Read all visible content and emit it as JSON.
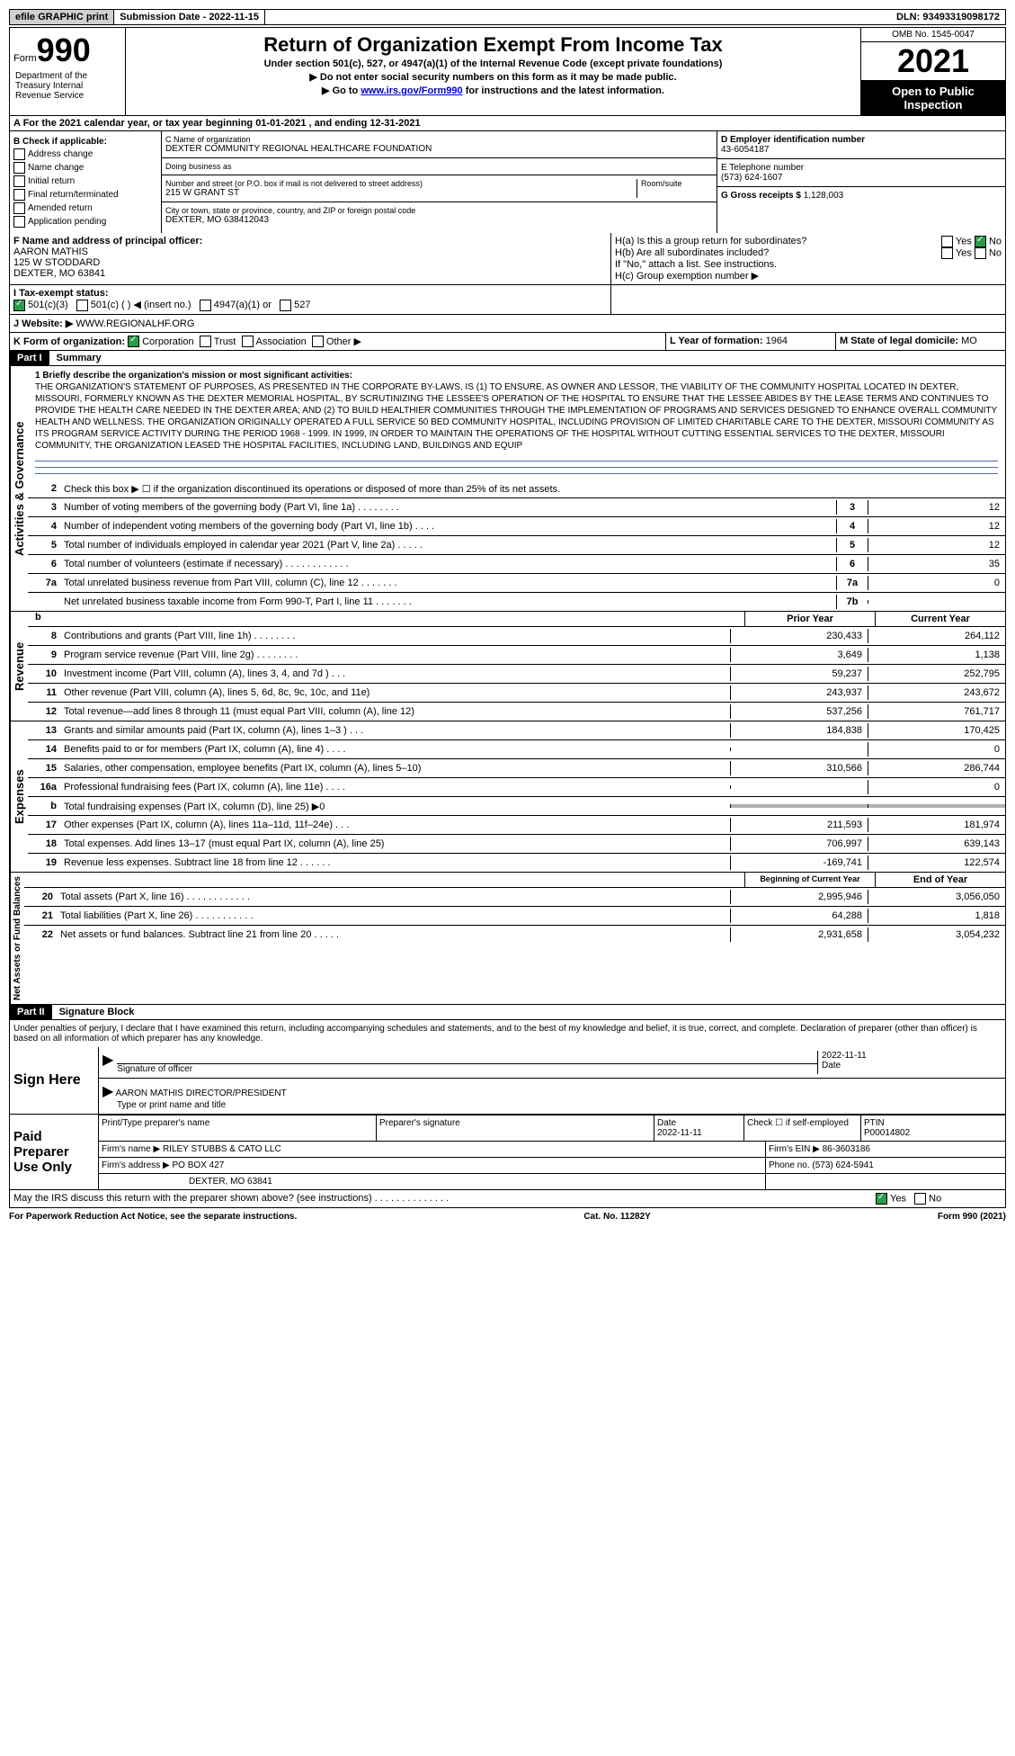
{
  "top_bar": {
    "efile": "efile GRAPHIC print",
    "submission": "Submission Date - 2022-11-15",
    "dln": "DLN: 93493319098172"
  },
  "header": {
    "form_label": "Form",
    "form_number": "990",
    "title": "Return of Organization Exempt From Income Tax",
    "subtitle1": "Under section 501(c), 527, or 4947(a)(1) of the Internal Revenue Code (except private foundations)",
    "subtitle2": "▶ Do not enter social security numbers on this form as it may be made public.",
    "subtitle3_pre": "▶ Go to ",
    "subtitle3_link": "www.irs.gov/Form990",
    "subtitle3_post": " for instructions and the latest information.",
    "omb": "OMB No. 1545-0047",
    "year": "2021",
    "open_public": "Open to Public Inspection",
    "dept": "Department of the Treasury Internal Revenue Service"
  },
  "row_a": "A For the 2021 calendar year, or tax year beginning 01-01-2021   , and ending 12-31-2021",
  "box_b": {
    "title": "B Check if applicable:",
    "items": [
      "Address change",
      "Name change",
      "Initial return",
      "Final return/terminated",
      "Amended return",
      "Application pending"
    ]
  },
  "box_c": {
    "label_name": "C Name of organization",
    "name": "DEXTER COMMUNITY REGIONAL HEALTHCARE FOUNDATION",
    "dba_label": "Doing business as",
    "dba": "",
    "addr_label": "Number and street (or P.O. box if mail is not delivered to street address)",
    "addr": "215 W GRANT ST",
    "room_label": "Room/suite",
    "city_label": "City or town, state or province, country, and ZIP or foreign postal code",
    "city": "DEXTER, MO  638412043"
  },
  "box_d": {
    "label": "D Employer identification number",
    "value": "43-6054187"
  },
  "box_e": {
    "label": "E Telephone number",
    "value": "(573) 624-1607"
  },
  "box_g": {
    "label": "G Gross receipts $",
    "value": "1,128,003"
  },
  "box_f": {
    "label": "F  Name and address of principal officer:",
    "name": "AARON MATHIS",
    "addr1": "125 W STODDARD",
    "addr2": "DEXTER, MO  63841"
  },
  "box_h": {
    "ha_label": "H(a)  Is this a group return for subordinates?",
    "hb_label": "H(b)  Are all subordinates included?",
    "hb_note": "If \"No,\" attach a list. See instructions.",
    "hc_label": "H(c)  Group exemption number ▶",
    "yes": "Yes",
    "no": "No"
  },
  "box_i": {
    "label": "I  Tax-exempt status:",
    "opts": [
      "501(c)(3)",
      "501(c) (  ) ◀ (insert no.)",
      "4947(a)(1) or",
      "527"
    ]
  },
  "box_j": {
    "label": "J Website: ▶",
    "value": "WWW.REGIONALHF.ORG"
  },
  "box_k": {
    "label": "K Form of organization:",
    "opts": [
      "Corporation",
      "Trust",
      "Association",
      "Other ▶"
    ]
  },
  "box_l": {
    "label": "L Year of formation:",
    "value": "1964"
  },
  "box_m": {
    "label": "M State of legal domicile:",
    "value": "MO"
  },
  "part1": {
    "header": "Part I",
    "title": "Summary",
    "sec_ag": "Activities & Governance",
    "sec_rev": "Revenue",
    "sec_exp": "Expenses",
    "sec_na": "Net Assets or Fund Balances",
    "l1_label": "1  Briefly describe the organization's mission or most significant activities:",
    "l1_text": "THE ORGANIZATION'S STATEMENT OF PURPOSES, AS PRESENTED IN THE CORPORATE BY-LAWS, IS (1) TO ENSURE, AS OWNER AND LESSOR, THE VIABILITY OF THE COMMUNITY HOSPITAL LOCATED IN DEXTER, MISSOURI, FORMERLY KNOWN AS THE DEXTER MEMORIAL HOSPITAL, BY SCRUTINIZING THE LESSEE'S OPERATION OF THE HOSPITAL TO ENSURE THAT THE LESSEE ABIDES BY THE LEASE TERMS AND CONTINUES TO PROVIDE THE HEALTH CARE NEEDED IN THE DEXTER AREA; AND (2) TO BUILD HEALTHIER COMMUNITIES THROUGH THE IMPLEMENTATION OF PROGRAMS AND SERVICES DESIGNED TO ENHANCE OVERALL COMMUNITY HEALTH AND WELLNESS. THE ORGANIZATION ORIGINALLY OPERATED A FULL SERVICE 50 BED COMMUNITY HOSPITAL, INCLUDING PROVISION OF LIMITED CHARITABLE CARE TO THE DEXTER, MISSOURI COMMUNITY AS ITS PROGRAM SERVICE ACTIVITY DURING THE PERIOD 1968 - 1999. IN 1999, IN ORDER TO MAINTAIN THE OPERATIONS OF THE HOSPITAL WITHOUT CUTTING ESSENTIAL SERVICES TO THE DEXTER, MISSOURI COMMUNITY, THE ORGANIZATION LEASED THE HOSPITAL FACILITIES, INCLUDING LAND, BUILDINGS AND EQUIP",
    "l2": "Check this box ▶ ☐  if the organization discontinued its operations or disposed of more than 25% of its net assets.",
    "lines_ag": [
      {
        "n": "3",
        "d": "Number of voting members of the governing body (Part VI, line 1a)  .   .   .   .   .   .   .   .",
        "bl": "3",
        "v": "12"
      },
      {
        "n": "4",
        "d": "Number of independent voting members of the governing body (Part VI, line 1b)   .   .   .   .",
        "bl": "4",
        "v": "12"
      },
      {
        "n": "5",
        "d": "Total number of individuals employed in calendar year 2021 (Part V, line 2a)   .   .   .   .   .",
        "bl": "5",
        "v": "12"
      },
      {
        "n": "6",
        "d": "Total number of volunteers (estimate if necessary)  .   .   .   .   .   .   .   .   .   .   .   .",
        "bl": "6",
        "v": "35"
      },
      {
        "n": "7a",
        "d": "Total unrelated business revenue from Part VIII, column (C), line 12   .   .   .   .   .   .   .",
        "bl": "7a",
        "v": "0"
      },
      {
        "n": "",
        "d": "Net unrelated business taxable income from Form 990-T, Part I, line 11  .   .   .   .   .   .   .",
        "bl": "7b",
        "v": ""
      }
    ],
    "col_prior": "Prior Year",
    "col_current": "Current Year",
    "lines_rev": [
      {
        "n": "8",
        "d": "Contributions and grants (Part VIII, line 1h)  .   .   .   .   .   .   .   .",
        "p": "230,433",
        "c": "264,112"
      },
      {
        "n": "9",
        "d": "Program service revenue (Part VIII, line 2g)  .   .   .   .   .   .   .   .",
        "p": "3,649",
        "c": "1,138"
      },
      {
        "n": "10",
        "d": "Investment income (Part VIII, column (A), lines 3, 4, and 7d )   .   .   .",
        "p": "59,237",
        "c": "252,795"
      },
      {
        "n": "11",
        "d": "Other revenue (Part VIII, column (A), lines 5, 6d, 8c, 9c, 10c, and 11e)",
        "p": "243,937",
        "c": "243,672"
      },
      {
        "n": "12",
        "d": "Total revenue—add lines 8 through 11 (must equal Part VIII, column (A), line 12)",
        "p": "537,256",
        "c": "761,717"
      }
    ],
    "lines_exp": [
      {
        "n": "13",
        "d": "Grants and similar amounts paid (Part IX, column (A), lines 1–3 )  .   .   .",
        "p": "184,838",
        "c": "170,425"
      },
      {
        "n": "14",
        "d": "Benefits paid to or for members (Part IX, column (A), line 4)  .   .   .   .",
        "p": "",
        "c": "0"
      },
      {
        "n": "15",
        "d": "Salaries, other compensation, employee benefits (Part IX, column (A), lines 5–10)",
        "p": "310,566",
        "c": "286,744"
      },
      {
        "n": "16a",
        "d": "Professional fundraising fees (Part IX, column (A), line 11e)  .   .   .   .",
        "p": "",
        "c": "0"
      },
      {
        "n": "b",
        "d": "Total fundraising expenses (Part IX, column (D), line 25) ▶0",
        "p": "shaded",
        "c": "shaded"
      },
      {
        "n": "17",
        "d": "Other expenses (Part IX, column (A), lines 11a–11d, 11f–24e)   .   .   .",
        "p": "211,593",
        "c": "181,974"
      },
      {
        "n": "18",
        "d": "Total expenses. Add lines 13–17 (must equal Part IX, column (A), line 25)",
        "p": "706,997",
        "c": "639,143"
      },
      {
        "n": "19",
        "d": "Revenue less expenses. Subtract line 18 from line 12  .   .   .   .   .   .",
        "p": "-169,741",
        "c": "122,574"
      }
    ],
    "col_begin": "Beginning of Current Year",
    "col_end": "End of Year",
    "lines_na": [
      {
        "n": "20",
        "d": "Total assets (Part X, line 16)  .   .   .   .   .   .   .   .   .   .   .   .",
        "p": "2,995,946",
        "c": "3,056,050"
      },
      {
        "n": "21",
        "d": "Total liabilities (Part X, line 26)  .   .   .   .   .   .   .   .   .   .   .",
        "p": "64,288",
        "c": "1,818"
      },
      {
        "n": "22",
        "d": "Net assets or fund balances. Subtract line 21 from line 20  .   .   .   .   .",
        "p": "2,931,658",
        "c": "3,054,232"
      }
    ]
  },
  "part2": {
    "header": "Part II",
    "title": "Signature Block",
    "penalties": "Under penalties of perjury, I declare that I have examined this return, including accompanying schedules and statements, and to the best of my knowledge and belief, it is true, correct, and complete. Declaration of preparer (other than officer) is based on all information of which preparer has any knowledge.",
    "sign_here": "Sign Here",
    "sig_officer": "Signature of officer",
    "sig_date": "2022-11-11",
    "date_label": "Date",
    "officer_name": "AARON MATHIS  DIRECTOR/PRESIDENT",
    "officer_type": "Type or print name and title",
    "paid_prep": "Paid Preparer Use Only",
    "pt_name_label": "Print/Type preparer's name",
    "pt_sig_label": "Preparer's signature",
    "pt_date_label": "Date",
    "pt_date": "2022-11-11",
    "pt_check_label": "Check ☐ if self-employed",
    "ptin_label": "PTIN",
    "ptin": "P00014802",
    "firm_name_label": "Firm's name    ▶",
    "firm_name": "RILEY STUBBS & CATO LLC",
    "firm_ein_label": "Firm's EIN ▶",
    "firm_ein": "86-3603186",
    "firm_addr_label": "Firm's address ▶",
    "firm_addr1": "PO BOX 427",
    "firm_addr2": "DEXTER, MO  63841",
    "phone_label": "Phone no.",
    "phone": "(573) 624-5941",
    "discuss": "May the IRS discuss this return with the preparer shown above? (see instructions)   .   .   .   .   .   .   .   .   .   .   .   .   .   .",
    "yes": "Yes",
    "no": "No"
  },
  "footer": {
    "left": "For Paperwork Reduction Act Notice, see the separate instructions.",
    "center": "Cat. No. 11282Y",
    "right": "Form 990 (2021)"
  }
}
